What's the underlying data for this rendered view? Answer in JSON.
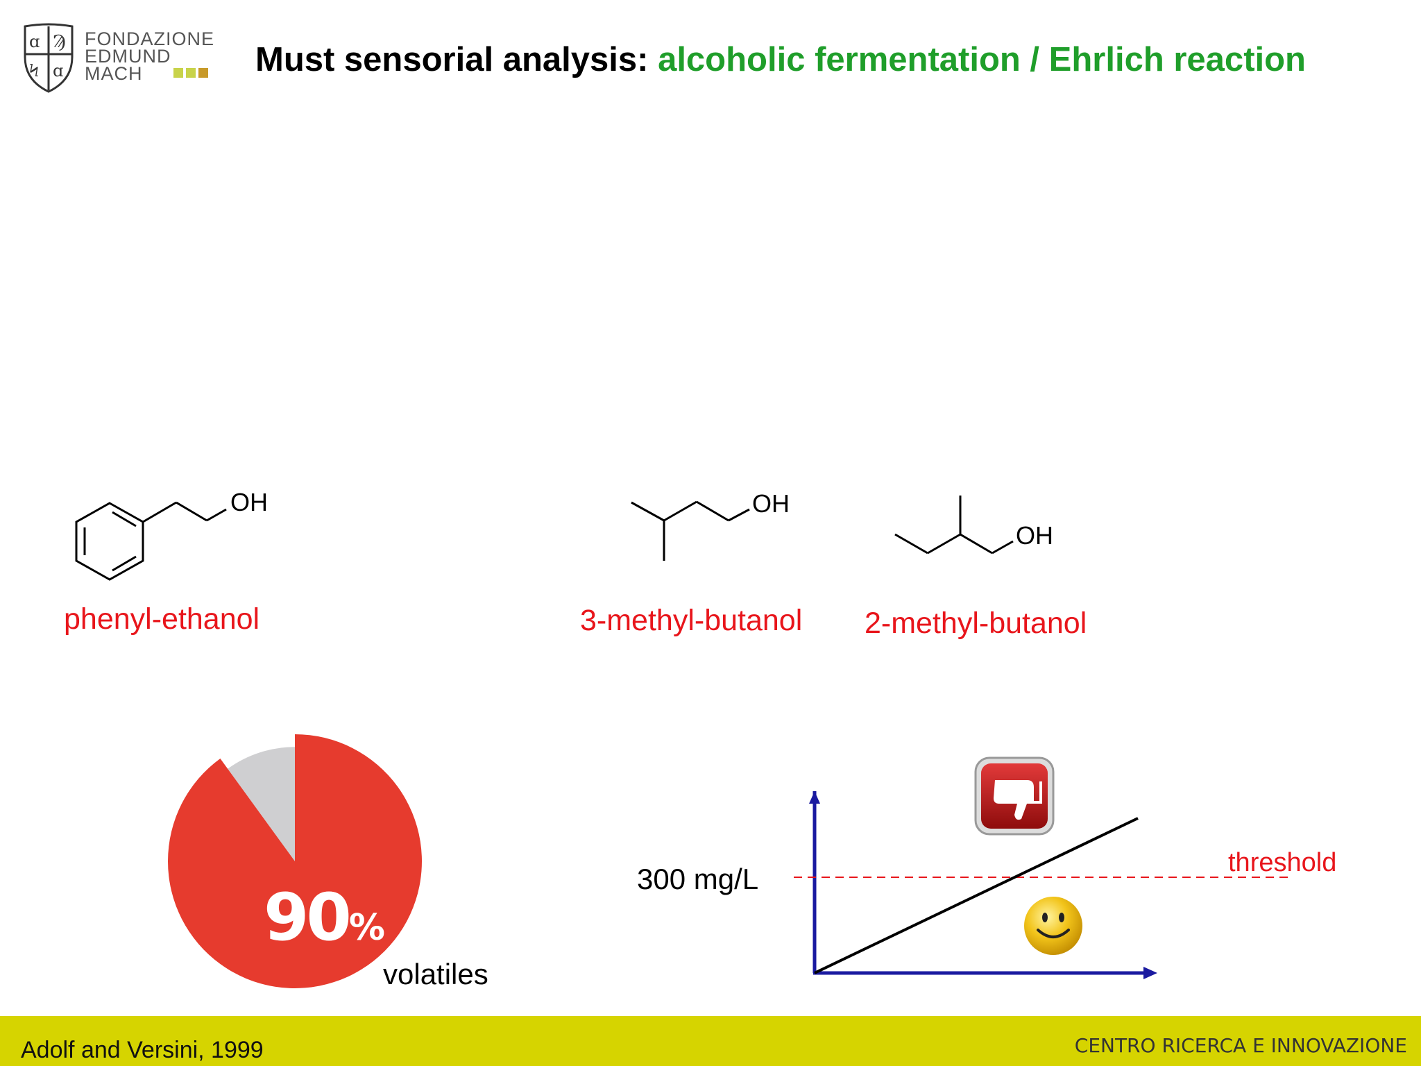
{
  "header": {
    "logo_lines": [
      "FONDAZIONE",
      "EDMUND",
      "MACH"
    ],
    "title_prefix": "Must sensorial analysis: ",
    "title_accent": "alcoholic fermentation / Ehrlich reaction",
    "accent_color": "#1f9e2a"
  },
  "molecules": [
    {
      "label": "phenyl-ethanol",
      "group": "OH"
    },
    {
      "label": "3-methyl-butanol",
      "group": "OH"
    },
    {
      "label": "2-methyl-butanol",
      "group": "OH"
    }
  ],
  "pie": {
    "value_number": "90",
    "value_unit": "%",
    "caption": "volatiles",
    "fraction": 0.9,
    "main_color": "#e63b2e",
    "rest_color": "#cfcfd1"
  },
  "threshold_chart": {
    "y_label": "300 mg/L",
    "line_label": "threshold",
    "icons": [
      "thumbs-down-icon",
      "smiley-icon"
    ],
    "axis_color": "#1a1aa0",
    "threshold_color": "#e8151b"
  },
  "footer": {
    "citation": "Adolf and Versini, 1999",
    "organization": "CENTRO RICERCA E INNOVAZIONE",
    "bar_color": "#d6d400"
  }
}
